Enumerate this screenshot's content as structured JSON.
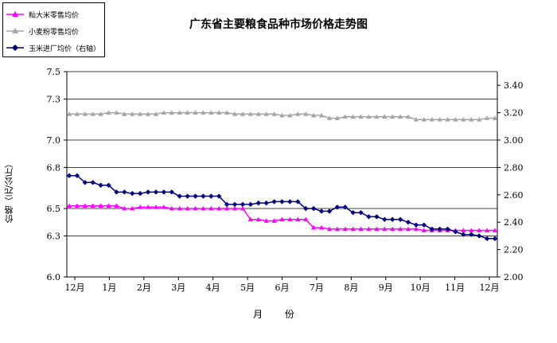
{
  "chart_data": {
    "type": "line",
    "title": "广东省主要粮食品种市场价格走势图",
    "xlabel": "月  份",
    "ylabel": "价格（元/公斤）",
    "y_left": {
      "min": 6.0,
      "max": 7.5,
      "ticks": [
        "6.0",
        "6.3",
        "6.5",
        "6.8",
        "7.0",
        "7.3",
        "7.5"
      ]
    },
    "y_right": {
      "min": 2.0,
      "max": 3.5,
      "ticks": [
        "2.00",
        "2.20",
        "2.40",
        "2.60",
        "2.80",
        "3.00",
        "3.20",
        "3.40"
      ]
    },
    "x_ticks": [
      "12月",
      "1月",
      "2月",
      "3月",
      "4月",
      "5月",
      "6月",
      "7月",
      "8月",
      "9月",
      "10月",
      "11月",
      "12月"
    ],
    "grid": true,
    "legend_position": "top-left",
    "series": [
      {
        "name": "籼大米零售均价",
        "axis": "left",
        "color": "#FF00FF",
        "marker": "triangle",
        "values": [
          6.52,
          6.52,
          6.52,
          6.52,
          6.52,
          6.52,
          6.52,
          6.5,
          6.5,
          6.51,
          6.51,
          6.51,
          6.51,
          6.5,
          6.5,
          6.5,
          6.5,
          6.5,
          6.5,
          6.5,
          6.5,
          6.5,
          6.5,
          6.42,
          6.42,
          6.41,
          6.41,
          6.42,
          6.42,
          6.42,
          6.42,
          6.36,
          6.36,
          6.35,
          6.35,
          6.35,
          6.35,
          6.35,
          6.35,
          6.35,
          6.35,
          6.35,
          6.35,
          6.35,
          6.35,
          6.34,
          6.34,
          6.34,
          6.34,
          6.34,
          6.34,
          6.34,
          6.34,
          6.34,
          6.34
        ]
      },
      {
        "name": "小麦粉零售均价",
        "axis": "left",
        "color": "#A6A6A6",
        "marker": "triangle",
        "values": [
          7.19,
          7.19,
          7.19,
          7.19,
          7.19,
          7.2,
          7.2,
          7.19,
          7.19,
          7.19,
          7.19,
          7.19,
          7.2,
          7.2,
          7.2,
          7.2,
          7.2,
          7.2,
          7.2,
          7.2,
          7.2,
          7.19,
          7.19,
          7.19,
          7.19,
          7.19,
          7.19,
          7.18,
          7.18,
          7.19,
          7.19,
          7.18,
          7.18,
          7.16,
          7.16,
          7.17,
          7.17,
          7.17,
          7.17,
          7.17,
          7.17,
          7.17,
          7.17,
          7.17,
          7.15,
          7.15,
          7.15,
          7.15,
          7.15,
          7.15,
          7.15,
          7.15,
          7.15,
          7.16,
          7.16
        ]
      },
      {
        "name": "玉米进厂均价（右轴）",
        "axis": "right",
        "color": "#000080",
        "marker": "diamond",
        "values": [
          2.74,
          2.74,
          2.69,
          2.69,
          2.67,
          2.67,
          2.62,
          2.62,
          2.61,
          2.61,
          2.62,
          2.62,
          2.62,
          2.62,
          2.59,
          2.59,
          2.59,
          2.59,
          2.59,
          2.59,
          2.53,
          2.53,
          2.53,
          2.53,
          2.54,
          2.54,
          2.55,
          2.55,
          2.55,
          2.55,
          2.5,
          2.5,
          2.48,
          2.48,
          2.51,
          2.51,
          2.47,
          2.47,
          2.44,
          2.44,
          2.42,
          2.42,
          2.42,
          2.4,
          2.38,
          2.38,
          2.35,
          2.35,
          2.35,
          2.33,
          2.31,
          2.31,
          2.3,
          2.28,
          2.28
        ]
      }
    ]
  }
}
